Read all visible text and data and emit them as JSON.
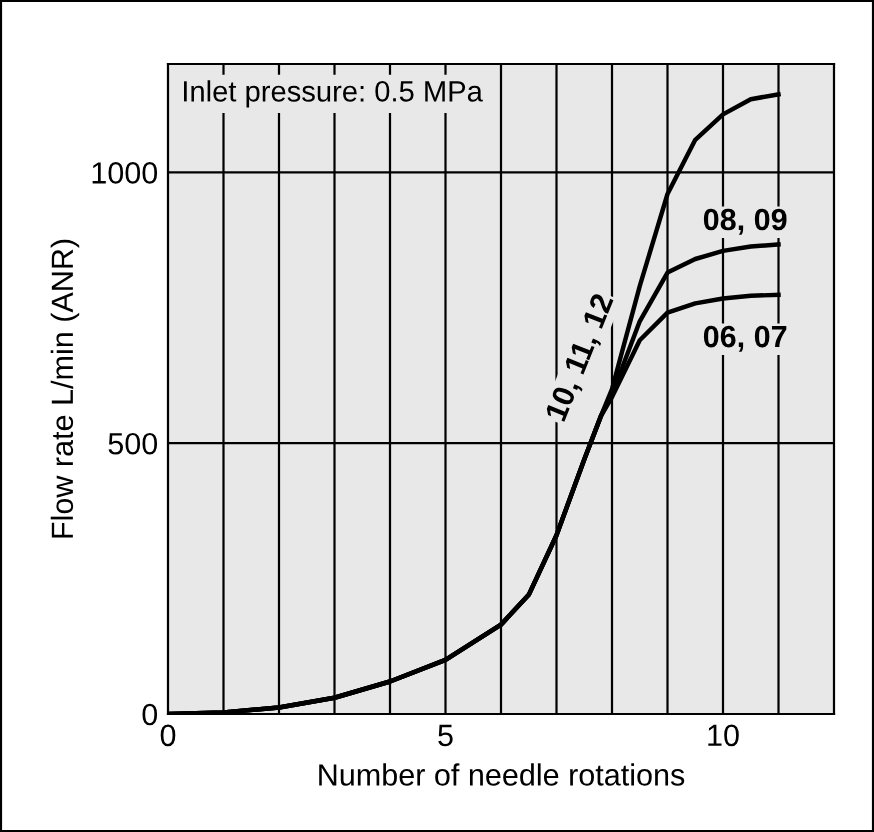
{
  "chart_data": {
    "type": "line",
    "xlabel": "Number of needle rotations",
    "ylabel": "Flow rate L/min (ANR)",
    "annotations": [
      "Inlet pressure: 0.5 MPa"
    ],
    "x": [
      0,
      1,
      2,
      3,
      4,
      5,
      6,
      6.5,
      7,
      7.5,
      7.8,
      8,
      8.5,
      9,
      9.5,
      10,
      10.5,
      11
    ],
    "series": [
      {
        "name": "10, 11, 12",
        "color": "#000000",
        "values": [
          0,
          3,
          12,
          30,
          60,
          100,
          165,
          220,
          330,
          470,
          550,
          600,
          790,
          960,
          1060,
          1107,
          1135,
          1144
        ]
      },
      {
        "name": "08, 09",
        "color": "#000000",
        "values": [
          0,
          3,
          12,
          30,
          60,
          100,
          165,
          220,
          330,
          470,
          550,
          590,
          725,
          815,
          840,
          855,
          863,
          867
        ]
      },
      {
        "name": "06, 07",
        "color": "#000000",
        "values": [
          0,
          3,
          12,
          30,
          60,
          100,
          165,
          220,
          330,
          470,
          550,
          585,
          690,
          741,
          758,
          767,
          772,
          774
        ]
      }
    ],
    "xlim": [
      0,
      12
    ],
    "ylim": [
      0,
      1200
    ],
    "xticks": [
      0,
      5,
      10
    ],
    "yticks": [
      0,
      500,
      1000
    ],
    "grid": true,
    "legend": false,
    "marker": "none",
    "line_style": "solid"
  }
}
